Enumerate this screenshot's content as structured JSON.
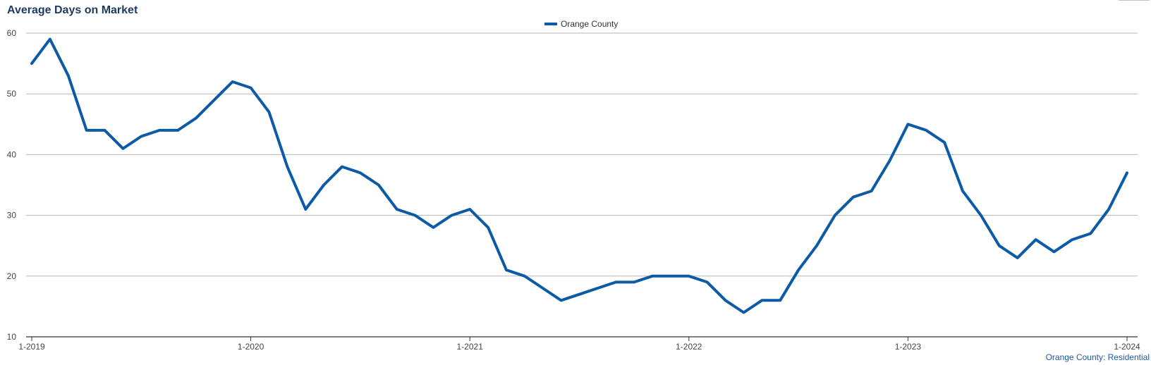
{
  "title": "Average Days on Market",
  "footer": "Orange County: Residential",
  "colors": {
    "line": "#0d5aa7",
    "title": "#1f3a5f",
    "grid": "#b5b5b5",
    "axis": "#444444"
  },
  "chart_data": {
    "type": "line",
    "title": "Average Days on Market",
    "xlabel": "",
    "ylabel": "",
    "ylim": [
      10,
      60
    ],
    "yticks": [
      10,
      20,
      30,
      40,
      50,
      60
    ],
    "xtick_labels": [
      "1-2019",
      "1-2020",
      "1-2021",
      "1-2022",
      "1-2023",
      "1-2024"
    ],
    "grid": true,
    "legend_position": "top-center",
    "categories": [
      "1-2019",
      "2-2019",
      "3-2019",
      "4-2019",
      "5-2019",
      "6-2019",
      "7-2019",
      "8-2019",
      "9-2019",
      "10-2019",
      "11-2019",
      "12-2019",
      "1-2020",
      "2-2020",
      "3-2020",
      "4-2020",
      "5-2020",
      "6-2020",
      "7-2020",
      "8-2020",
      "9-2020",
      "10-2020",
      "11-2020",
      "12-2020",
      "1-2021",
      "2-2021",
      "3-2021",
      "4-2021",
      "5-2021",
      "6-2021",
      "7-2021",
      "8-2021",
      "9-2021",
      "10-2021",
      "11-2021",
      "12-2021",
      "1-2022",
      "2-2022",
      "3-2022",
      "4-2022",
      "5-2022",
      "6-2022",
      "7-2022",
      "8-2022",
      "9-2022",
      "10-2022",
      "11-2022",
      "12-2022",
      "1-2023",
      "2-2023",
      "3-2023",
      "4-2023",
      "5-2023",
      "6-2023",
      "7-2023",
      "8-2023",
      "9-2023",
      "10-2023",
      "11-2023",
      "12-2023",
      "1-2024"
    ],
    "series": [
      {
        "name": "Orange County",
        "color": "#0d5aa7",
        "values": [
          55,
          59,
          53,
          44,
          44,
          41,
          43,
          44,
          44,
          46,
          49,
          52,
          51,
          47,
          38,
          31,
          35,
          38,
          37,
          35,
          31,
          30,
          28,
          30,
          31,
          28,
          21,
          20,
          18,
          16,
          17,
          18,
          19,
          19,
          20,
          20,
          20,
          19,
          16,
          14,
          16,
          16,
          21,
          25,
          30,
          33,
          34,
          39,
          45,
          44,
          42,
          34,
          30,
          25,
          23,
          26,
          24,
          26,
          27,
          31,
          37
        ]
      }
    ]
  }
}
